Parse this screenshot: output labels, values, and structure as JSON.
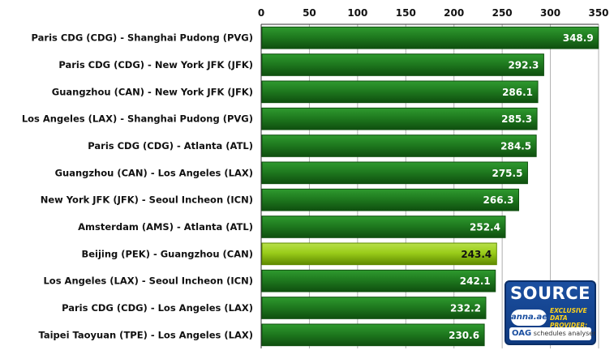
{
  "chart_data": {
    "type": "bar",
    "orientation": "horizontal",
    "categories": [
      "Paris CDG (CDG) - Shanghai Pudong (PVG)",
      "Paris CDG (CDG) - New York JFK (JFK)",
      "Guangzhou (CAN) - New York JFK (JFK)",
      "Los Angeles (LAX) - Shanghai Pudong (PVG)",
      "Paris CDG (CDG) - Atlanta (ATL)",
      "Guangzhou (CAN) - Los Angeles (LAX)",
      "New York JFK (JFK) - Seoul Incheon (ICN)",
      "Amsterdam (AMS) - Atlanta (ATL)",
      "Beijing (PEK) - Guangzhou (CAN)",
      "Los Angeles (LAX) - Seoul Incheon (ICN)",
      "Paris CDG (CDG) - Los Angeles (LAX)",
      "Taipei Taoyuan (TPE) - Los Angeles (LAX)"
    ],
    "values": [
      348.9,
      292.3,
      286.1,
      285.3,
      284.5,
      275.5,
      266.3,
      252.4,
      243.4,
      242.1,
      232.2,
      230.6
    ],
    "value_labels": [
      "348.9",
      "292.3",
      "286.1",
      "285.3",
      "284.5",
      "275.5",
      "266.3",
      "252.4",
      "243.4",
      "242.1",
      "232.2",
      "230.6"
    ],
    "highlight_index": 8,
    "xlim": [
      0,
      350
    ],
    "xticks": [
      "0",
      "50",
      "100",
      "150",
      "200",
      "250",
      "300",
      "350"
    ],
    "axis_position": "top",
    "grid": true,
    "title": "",
    "xlabel": "",
    "ylabel": "",
    "colors": {
      "bar": "#1f7a1f",
      "bar_light": "#2f9a2f",
      "bar_dark": "#0f4f0f",
      "highlight": "#9acd1a",
      "highlight_light": "#b8e04a",
      "highlight_dark": "#5f8a00",
      "grid": "#b0b0b0"
    }
  },
  "badge": {
    "source": "SOURCE",
    "anna": "anna.aero",
    "exclusive": "EXCLUSIVE",
    "provider": "DATA PROVIDER:",
    "oag": "OAG",
    "analyser": "schedules analyser"
  }
}
